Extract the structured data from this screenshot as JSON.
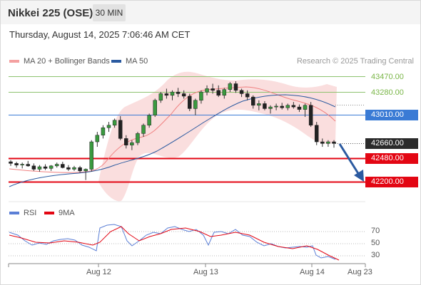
{
  "header": {
    "title": "Nikkei 225 (OSE)",
    "timeframe": "30 MIN",
    "datetime": "Thursday, August 14, 2025 7:06:46 AM CET"
  },
  "legend": {
    "bollinger": "MA 20 + Bollinger Bands",
    "ma50": "MA 50",
    "source": "Research © 2025 Trading Central"
  },
  "colors": {
    "resistance": "#8dc26f",
    "pivot": "#3a7bd5",
    "support": "#e30613",
    "last_price": "#2b2b2b",
    "ma20": "#f08080",
    "ma50": "#2b5aa0",
    "rsi": "#5b7fd6",
    "rsi_ma": "#e30613",
    "arrow": "#2b5aa0"
  },
  "levels": [
    {
      "value": "43470.00",
      "kind": "resistance"
    },
    {
      "value": "43280.00",
      "kind": "resistance"
    },
    {
      "value": "43010.00",
      "kind": "pivot"
    },
    {
      "value": "42660.00",
      "kind": "last"
    },
    {
      "value": "42480.00",
      "kind": "support"
    },
    {
      "value": "42200.00",
      "kind": "support"
    }
  ],
  "indicator": {
    "rsi_label": "RSI",
    "ma_label": "9MA",
    "ticks": [
      "70",
      "50",
      "30"
    ]
  },
  "x_axis": {
    "ticks": [
      "Aug 12",
      "Aug 13",
      "Aug 14",
      "Aug 23"
    ]
  },
  "chart_data": {
    "type": "candlestick",
    "title": "Nikkei 225 (OSE)",
    "timeframe": "30 MIN",
    "price_levels": [
      43470,
      43280,
      43010,
      42660,
      42480,
      42200
    ],
    "projection": {
      "from": 42660,
      "to": 42200,
      "direction": "down"
    },
    "candles": [
      [
        42440,
        42460,
        42390,
        42420
      ],
      [
        42420,
        42440,
        42370,
        42400
      ],
      [
        42400,
        42430,
        42360,
        42410
      ],
      [
        42410,
        42450,
        42380,
        42390
      ],
      [
        42390,
        42420,
        42330,
        42350
      ],
      [
        42350,
        42400,
        42320,
        42380
      ],
      [
        42380,
        42410,
        42340,
        42360
      ],
      [
        42360,
        42400,
        42330,
        42390
      ],
      [
        42390,
        42430,
        42370,
        42410
      ],
      [
        42410,
        42440,
        42360,
        42370
      ],
      [
        42370,
        42400,
        42330,
        42350
      ],
      [
        42350,
        42390,
        42330,
        42370
      ],
      [
        42370,
        42390,
        42310,
        42330
      ],
      [
        42330,
        42360,
        42220,
        42350
      ],
      [
        42350,
        42700,
        42320,
        42680
      ],
      [
        42680,
        42800,
        42620,
        42760
      ],
      [
        42760,
        42880,
        42720,
        42850
      ],
      [
        42850,
        42920,
        42800,
        42880
      ],
      [
        42880,
        42960,
        42850,
        42940
      ],
      [
        42940,
        42990,
        42700,
        42720
      ],
      [
        42720,
        42760,
        42600,
        42640
      ],
      [
        42640,
        42700,
        42580,
        42670
      ],
      [
        42670,
        42800,
        42640,
        42780
      ],
      [
        42780,
        42900,
        42740,
        42880
      ],
      [
        42880,
        43020,
        42850,
        43000
      ],
      [
        43000,
        43200,
        42980,
        43180
      ],
      [
        43180,
        43280,
        43150,
        43260
      ],
      [
        43260,
        43320,
        43200,
        43240
      ],
      [
        43240,
        43300,
        43180,
        43280
      ],
      [
        43280,
        43330,
        43220,
        43260
      ],
      [
        43260,
        43300,
        43200,
        43230
      ],
      [
        43230,
        43260,
        43050,
        43080
      ],
      [
        43080,
        43200,
        43000,
        43180
      ],
      [
        43180,
        43300,
        43140,
        43280
      ],
      [
        43280,
        43360,
        43240,
        43320
      ],
      [
        43320,
        43380,
        43260,
        43300
      ],
      [
        43300,
        43360,
        43220,
        43240
      ],
      [
        43240,
        43330,
        43200,
        43310
      ],
      [
        43310,
        43400,
        43280,
        43380
      ],
      [
        43380,
        43410,
        43270,
        43300
      ],
      [
        43300,
        43320,
        43220,
        43260
      ],
      [
        43260,
        43300,
        43180,
        43220
      ],
      [
        43220,
        43240,
        43080,
        43120
      ],
      [
        43120,
        43180,
        43060,
        43140
      ],
      [
        43140,
        43170,
        43060,
        43080
      ],
      [
        43080,
        43120,
        43020,
        43100
      ],
      [
        43100,
        43140,
        43060,
        43110
      ],
      [
        43110,
        43150,
        43070,
        43090
      ],
      [
        43090,
        43140,
        43060,
        43120
      ],
      [
        43120,
        43160,
        43080,
        43100
      ],
      [
        43100,
        43130,
        43040,
        43070
      ],
      [
        43070,
        43140,
        42980,
        43120
      ],
      [
        43120,
        43160,
        42860,
        42880
      ],
      [
        42880,
        42920,
        42640,
        42680
      ],
      [
        42680,
        42720,
        42620,
        42660
      ],
      [
        42660,
        42700,
        42620,
        42680
      ],
      [
        42680,
        42700,
        42610,
        42660
      ]
    ]
  }
}
